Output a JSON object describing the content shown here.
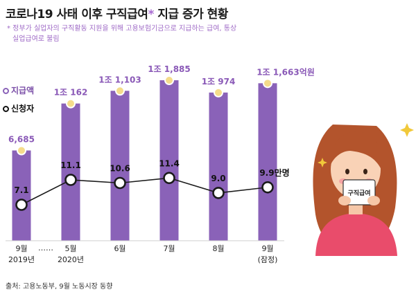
{
  "header": {
    "title": "코로나19 사태 이후 구직급여",
    "title_mark": "*",
    "title_suffix": " 지급 증가 현황"
  },
  "note": {
    "line1": "* 정부가 실업자의 구직활동 지원을 위해 고용보험기금으로 지급하는 급여, 통상",
    "line2": "실업급여로 불림"
  },
  "legend": {
    "payments": "지급액",
    "applicants": "신청자"
  },
  "source": "출처: 고용노동부, 9월 노동시장 동향",
  "illustration": {
    "card_text": "구직급여"
  },
  "colors": {
    "bar": "#8a62b8",
    "payment_marker": "#f5dc8b",
    "line": "#1a1a1a",
    "title_star": "#a86bd1"
  },
  "chart_data": {
    "type": "bar",
    "categories": [
      {
        "month": "9월",
        "sub": "2019년"
      },
      {
        "month": "5월",
        "sub": "2020년"
      },
      {
        "month": "6월",
        "sub": ""
      },
      {
        "month": "7월",
        "sub": ""
      },
      {
        "month": "8월",
        "sub": ""
      },
      {
        "month": "9월",
        "sub": "(잠정)"
      }
    ],
    "break_marker": "……",
    "series": [
      {
        "name": "지급액",
        "unit": "억원",
        "values": [
          6685,
          10162,
          11103,
          11885,
          10974,
          11663
        ],
        "labels": [
          "6,685",
          "1조 162",
          "1조 1,103",
          "1조 1,885",
          "1조 974",
          "1조 1,663억원"
        ]
      },
      {
        "name": "신청자",
        "unit": "만명",
        "values": [
          7.1,
          11.1,
          10.6,
          11.4,
          9.0,
          9.9
        ],
        "labels": [
          "7.1",
          "11.1",
          "10.6",
          "11.4",
          "9.0",
          "9.9만명"
        ]
      }
    ]
  }
}
